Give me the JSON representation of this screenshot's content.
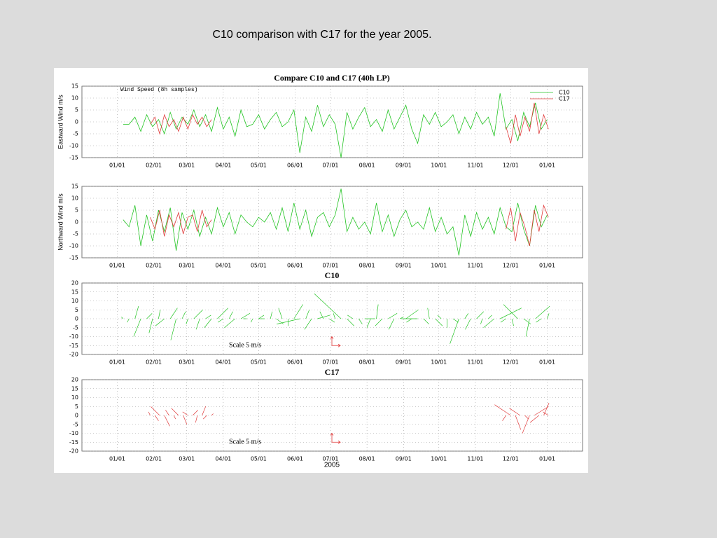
{
  "slide_title": "C10 comparison with C17 for the year 2005.",
  "chart_data": {
    "type": "multi-panel",
    "title": "Compare C10 and C17 (40h LP)",
    "annotation": "Wind Speed (8h samples)",
    "xlabel": "2005",
    "xlim": [
      -30,
      395
    ],
    "xticks": [
      {
        "value": 0,
        "label": "01/01"
      },
      {
        "value": 31,
        "label": "02/01"
      },
      {
        "value": 59,
        "label": "03/01"
      },
      {
        "value": 90,
        "label": "04/01"
      },
      {
        "value": 120,
        "label": "05/01"
      },
      {
        "value": 151,
        "label": "06/01"
      },
      {
        "value": 181,
        "label": "07/01"
      },
      {
        "value": 212,
        "label": "08/01"
      },
      {
        "value": 243,
        "label": "09/01"
      },
      {
        "value": 273,
        "label": "10/01"
      },
      {
        "value": 304,
        "label": "11/01"
      },
      {
        "value": 334,
        "label": "12/01"
      },
      {
        "value": 365,
        "label": "01/01"
      }
    ],
    "grid": true,
    "legend": "upper right",
    "series": [
      {
        "name": "C10",
        "color": "#22c422",
        "x": [
          5,
          10,
          15,
          20,
          25,
          30,
          35,
          40,
          45,
          50,
          55,
          60,
          65,
          70,
          75,
          80,
          85,
          90,
          95,
          100,
          105,
          110,
          115,
          120,
          125,
          130,
          135,
          140,
          145,
          150,
          155,
          160,
          165,
          170,
          175,
          180,
          185,
          190,
          195,
          200,
          205,
          210,
          215,
          220,
          225,
          230,
          235,
          240,
          245,
          250,
          255,
          260,
          265,
          270,
          275,
          280,
          285,
          290,
          295,
          300,
          305,
          310,
          315,
          320,
          325,
          330,
          335,
          340,
          345,
          350,
          355,
          360,
          365
        ],
        "eastward": [
          -1,
          -1,
          2,
          -4,
          3,
          -2,
          1,
          -5,
          4,
          -3,
          2,
          -1,
          5,
          -2,
          3,
          -4,
          6,
          -3,
          2,
          -6,
          5,
          -2,
          -1,
          3,
          -3,
          1,
          4,
          -2,
          0,
          5,
          -13,
          2,
          -4,
          7,
          -2,
          3,
          -1,
          -15,
          4,
          -3,
          2,
          6,
          -2,
          1,
          -4,
          5,
          -3,
          2,
          7,
          -3,
          -9,
          3,
          -1,
          4,
          -2,
          0,
          3,
          -5,
          2,
          -3,
          4,
          -1,
          2,
          -6,
          12,
          -3,
          1,
          -8,
          4,
          -2,
          8,
          -3,
          1
        ],
        "northward": [
          1,
          -2,
          7,
          -10,
          3,
          -8,
          5,
          -4,
          6,
          -12,
          4,
          -3,
          5,
          -6,
          2,
          -5,
          6,
          -2,
          4,
          -5,
          3,
          0,
          -2,
          2,
          0,
          4,
          -3,
          6,
          -4,
          8,
          -3,
          5,
          -6,
          2,
          4,
          -2,
          3,
          14,
          -4,
          2,
          -3,
          0,
          -5,
          8,
          -4,
          3,
          -6,
          1,
          5,
          -2,
          0,
          -3,
          6,
          -4,
          2,
          -5,
          -2,
          -14,
          3,
          -6,
          4,
          -3,
          2,
          -5,
          6,
          -2,
          -4,
          8,
          -3,
          -10,
          7,
          -2,
          3
        ]
      },
      {
        "name": "C17",
        "color": "#e03a3a",
        "x": [
          28,
          32,
          36,
          40,
          44,
          48,
          52,
          56,
          60,
          64,
          68,
          72,
          76,
          80,
          200,
          330,
          334,
          338,
          342,
          346,
          350,
          354,
          358,
          362,
          366
        ],
        "eastward": [
          -1,
          2,
          -5,
          3,
          -2,
          1,
          -4,
          2,
          -3,
          3,
          -1,
          2,
          -2,
          1,
          null,
          -2,
          -9,
          3,
          -6,
          2,
          -4,
          8,
          -5,
          3,
          -3
        ],
        "northward": [
          2,
          -3,
          5,
          -6,
          3,
          -2,
          4,
          -5,
          2,
          3,
          -4,
          5,
          -2,
          1,
          null,
          -3,
          6,
          -8,
          4,
          -2,
          -10,
          5,
          -4,
          7,
          2
        ]
      }
    ],
    "panels": [
      {
        "type": "line",
        "component": "eastward",
        "ylabel": "Eastward Wind m/s",
        "ylim": [
          -15,
          15
        ],
        "yticks": [
          -15,
          -10,
          -5,
          0,
          5,
          10,
          15
        ]
      },
      {
        "type": "line",
        "component": "northward",
        "ylabel": "Northward Wind m/s",
        "ylim": [
          -15,
          15
        ],
        "yticks": [
          -15,
          -10,
          -5,
          0,
          5,
          10,
          15
        ]
      },
      {
        "type": "stick",
        "title": "C10",
        "scale_label": "Scale 5 m/s",
        "ylim": [
          -20,
          20
        ],
        "yticks": [
          -20,
          -15,
          -10,
          -5,
          0,
          5,
          10,
          15,
          20
        ]
      },
      {
        "type": "stick",
        "title": "C17",
        "scale_label": "Scale 5 m/s",
        "ylim": [
          -20,
          20
        ],
        "yticks": [
          -20,
          -15,
          -10,
          -5,
          0,
          5,
          10,
          15,
          20
        ]
      }
    ]
  }
}
